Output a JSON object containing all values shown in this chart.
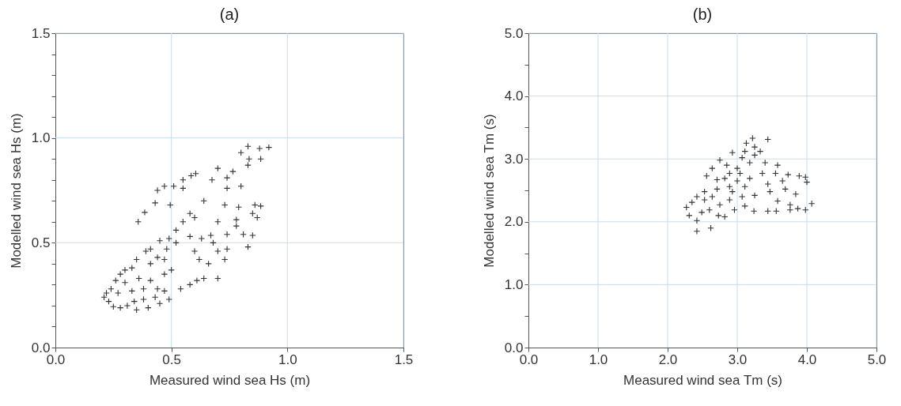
{
  "chart_data": [
    {
      "type": "scatter",
      "title": "(a)",
      "xlabel": "Measured wind sea Hs (m)",
      "ylabel": "Modelled wind sea Hs (m)",
      "marker": "cross",
      "grid": true,
      "xlim": [
        0,
        1.5
      ],
      "ylim": [
        0,
        1.5
      ],
      "xticks": [
        {
          "value": 0,
          "label": "0.0"
        },
        {
          "value": 0.5,
          "label": "0.5"
        },
        {
          "value": 1,
          "label": "1.0"
        },
        {
          "value": 1.5,
          "label": "1.5"
        }
      ],
      "yticks": [
        {
          "value": 0,
          "label": "0.0"
        },
        {
          "value": 0.1,
          "label": null
        },
        {
          "value": 0.2,
          "label": null
        },
        {
          "value": 0.3,
          "label": null
        },
        {
          "value": 0.4,
          "label": null
        },
        {
          "value": 0.5,
          "label": "0.5"
        },
        {
          "value": 0.6,
          "label": null
        },
        {
          "value": 0.7,
          "label": null
        },
        {
          "value": 0.8,
          "label": null
        },
        {
          "value": 0.9,
          "label": null
        },
        {
          "value": 1,
          "label": "1.0"
        },
        {
          "value": 1.1,
          "label": null
        },
        {
          "value": 1.2,
          "label": null
        },
        {
          "value": 1.3,
          "label": null
        },
        {
          "value": 1.4,
          "label": null
        },
        {
          "value": 1.5,
          "label": "1.5"
        }
      ],
      "series": [
        {
          "color": "#333333",
          "x": [
            0.83,
            0.88,
            0.92,
            0.8,
            0.835,
            0.885,
            0.83,
            0.7,
            0.765,
            0.605,
            0.585,
            0.55,
            0.675,
            0.74,
            0.8,
            0.47,
            0.44,
            0.51,
            0.55,
            0.74,
            0.385,
            0.357,
            0.43,
            0.495,
            0.86,
            0.885,
            0.85,
            0.87,
            0.79,
            0.73,
            0.64,
            0.78,
            0.78,
            0.81,
            0.85,
            0.83,
            0.74,
            0.7,
            0.67,
            0.74,
            0.68,
            0.7,
            0.73,
            0.66,
            0.64,
            0.7,
            0.61,
            0.58,
            0.54,
            0.62,
            0.6,
            0.58,
            0.55,
            0.6,
            0.52,
            0.49,
            0.45,
            0.41,
            0.48,
            0.52,
            0.58,
            0.63,
            0.44,
            0.39,
            0.35,
            0.41,
            0.47,
            0.33,
            0.3,
            0.28,
            0.26,
            0.24,
            0.22,
            0.21,
            0.23,
            0.25,
            0.28,
            0.31,
            0.34,
            0.38,
            0.43,
            0.47,
            0.49,
            0.44,
            0.38,
            0.33,
            0.3,
            0.36,
            0.41,
            0.47,
            0.5,
            0.27,
            0.45,
            0.4,
            0.35
          ],
          "values": [
            0.96,
            0.95,
            0.955,
            0.93,
            0.9,
            0.9,
            0.87,
            0.855,
            0.84,
            0.83,
            0.82,
            0.8,
            0.8,
            0.81,
            0.77,
            0.77,
            0.75,
            0.77,
            0.76,
            0.76,
            0.645,
            0.6,
            0.69,
            0.68,
            0.68,
            0.675,
            0.64,
            0.62,
            0.67,
            0.68,
            0.7,
            0.61,
            0.58,
            0.54,
            0.535,
            0.48,
            0.54,
            0.6,
            0.535,
            0.47,
            0.5,
            0.46,
            0.42,
            0.4,
            0.33,
            0.33,
            0.32,
            0.3,
            0.28,
            0.42,
            0.46,
            0.64,
            0.6,
            0.62,
            0.56,
            0.52,
            0.51,
            0.47,
            0.47,
            0.5,
            0.53,
            0.52,
            0.43,
            0.46,
            0.42,
            0.4,
            0.42,
            0.38,
            0.37,
            0.35,
            0.32,
            0.28,
            0.26,
            0.24,
            0.22,
            0.195,
            0.19,
            0.2,
            0.22,
            0.23,
            0.24,
            0.27,
            0.23,
            0.28,
            0.28,
            0.27,
            0.31,
            0.33,
            0.32,
            0.35,
            0.37,
            0.26,
            0.21,
            0.19,
            0.18
          ]
        }
      ]
    },
    {
      "type": "scatter",
      "title": "(b)",
      "xlabel": "Measured wind sea Tm (s)",
      "ylabel": "Modelled wind sea Tm (s)",
      "marker": "cross",
      "grid": true,
      "xlim": [
        0,
        5
      ],
      "ylim": [
        0,
        5
      ],
      "xticks": [
        {
          "value": 0,
          "label": "0.0"
        },
        {
          "value": 1,
          "label": "1.0"
        },
        {
          "value": 2,
          "label": "2.0"
        },
        {
          "value": 3,
          "label": "3.0"
        },
        {
          "value": 4,
          "label": "4.0"
        },
        {
          "value": 5,
          "label": "5.0"
        }
      ],
      "yticks": [
        {
          "value": 0,
          "label": "0.0"
        },
        {
          "value": 0.5,
          "label": null
        },
        {
          "value": 1,
          "label": "1.0"
        },
        {
          "value": 1.5,
          "label": null
        },
        {
          "value": 2,
          "label": "2.0"
        },
        {
          "value": 2.5,
          "label": null
        },
        {
          "value": 3,
          "label": "3.0"
        },
        {
          "value": 3.5,
          "label": null
        },
        {
          "value": 4,
          "label": "4.0"
        },
        {
          "value": 4.5,
          "label": null
        },
        {
          "value": 5,
          "label": "5.0"
        }
      ],
      "series": [
        {
          "color": "#333333",
          "x": [
            3.44,
            3.22,
            3.13,
            3.25,
            3.33,
            2.93,
            2.75,
            3.07,
            2.64,
            2.85,
            3.18,
            3.4,
            3.58,
            2.56,
            2.82,
            3.0,
            3.18,
            3.36,
            3.55,
            3.73,
            3.89,
            3.98,
            4.0,
            3.65,
            3.44,
            3.11,
            2.89,
            2.71,
            2.53,
            2.42,
            2.35,
            2.27,
            2.31,
            2.42,
            2.42,
            2.62,
            2.6,
            2.75,
            2.89,
            3.07,
            3.25,
            3.47,
            3.69,
            3.84,
            3.58,
            3.76,
            3.87,
            3.98,
            4.07,
            3.76,
            3.56,
            3.44,
            3.24,
            3.11,
            2.96,
            2.82,
            2.73,
            2.49,
            2.53,
            2.64,
            2.93,
            3.04,
            2.89,
            2.71,
            3.25,
            3.11,
            3.0
          ],
          "values": [
            3.31,
            3.33,
            3.25,
            3.19,
            3.12,
            3.1,
            2.98,
            3.02,
            2.85,
            2.9,
            2.94,
            2.94,
            2.9,
            2.73,
            2.69,
            2.65,
            2.69,
            2.77,
            2.77,
            2.75,
            2.73,
            2.71,
            2.63,
            2.65,
            2.6,
            2.56,
            2.56,
            2.52,
            2.48,
            2.4,
            2.31,
            2.23,
            2.1,
            2.02,
            1.85,
            1.9,
            2.19,
            2.27,
            2.35,
            2.4,
            2.42,
            2.48,
            2.52,
            2.44,
            2.33,
            2.27,
            2.21,
            2.19,
            2.29,
            2.19,
            2.17,
            2.17,
            2.17,
            2.25,
            2.19,
            2.08,
            2.1,
            2.15,
            2.35,
            2.4,
            2.48,
            2.77,
            2.77,
            2.67,
            3.06,
            3.12,
            2.85
          ]
        }
      ]
    }
  ]
}
